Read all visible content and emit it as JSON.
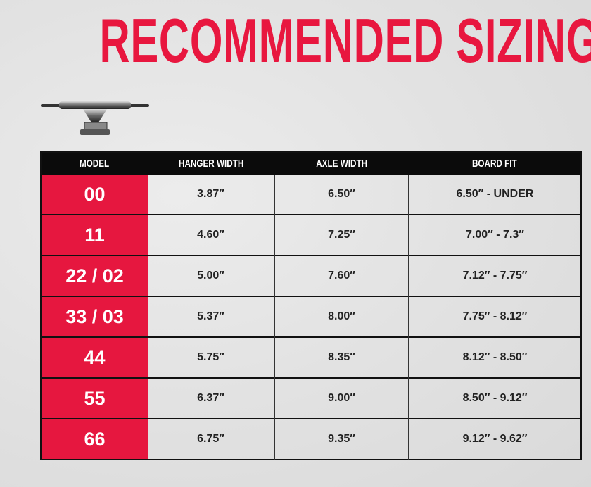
{
  "title": "RECOMMENDED SIZING",
  "colors": {
    "accent": "#e6173f",
    "header_bg": "#0b0b0b"
  },
  "icon": "skateboard-truck-icon",
  "table": {
    "headers": [
      "MODEL",
      "HANGER WIDTH",
      "AXLE WIDTH",
      "BOARD FIT"
    ],
    "rows": [
      {
        "model": "00",
        "hanger": "3.87″",
        "axle": "6.50″",
        "board": "6.50″ - UNDER"
      },
      {
        "model": "11",
        "hanger": "4.60″",
        "axle": "7.25″",
        "board": "7.00″ - 7.3″"
      },
      {
        "model": "22 / 02",
        "hanger": "5.00″",
        "axle": "7.60″",
        "board": "7.12″ - 7.75″"
      },
      {
        "model": "33 / 03",
        "hanger": "5.37″",
        "axle": "8.00″",
        "board": "7.75″ - 8.12″"
      },
      {
        "model": "44",
        "hanger": "5.75″",
        "axle": "8.35″",
        "board": "8.12″ - 8.50″"
      },
      {
        "model": "55",
        "hanger": "6.37″",
        "axle": "9.00″",
        "board": "8.50″ - 9.12″"
      },
      {
        "model": "66",
        "hanger": "6.75″",
        "axle": "9.35″",
        "board": "9.12″ - 9.62″"
      }
    ]
  }
}
